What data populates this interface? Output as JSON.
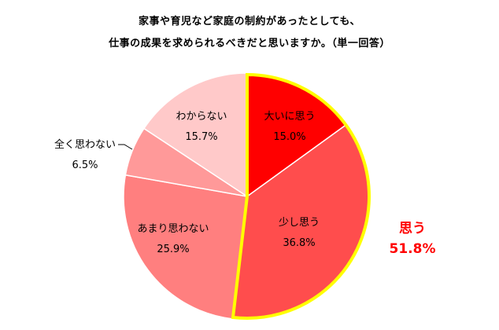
{
  "chart_data": {
    "type": "pie",
    "title_lines": [
      "家事や育児など家庭の制約があったとしても、",
      "仕事の成果を求められるべきだと思いますか。（単一回答）"
    ],
    "slices": [
      {
        "label": "大いに思う",
        "value": 15.0,
        "display": "15.0%",
        "color": "#ff0000"
      },
      {
        "label": "少し思う",
        "value": 36.8,
        "display": "36.8%",
        "color": "#ff4d4d"
      },
      {
        "label": "あまり思わない",
        "value": 25.9,
        "display": "25.9%",
        "color": "#ff7f7f"
      },
      {
        "label": "全く思わない",
        "value": 6.5,
        "display": "6.5%",
        "color": "#ff9999"
      },
      {
        "label": "わからない",
        "value": 15.7,
        "display": "15.7%",
        "color": "#ffc9c9"
      }
    ],
    "group_annotation": {
      "label": "思う",
      "value": "51.8%",
      "color": "#ff0000",
      "outline_color": "#ffff00"
    },
    "start_angle": "12 o'clock",
    "direction": "clockwise"
  }
}
